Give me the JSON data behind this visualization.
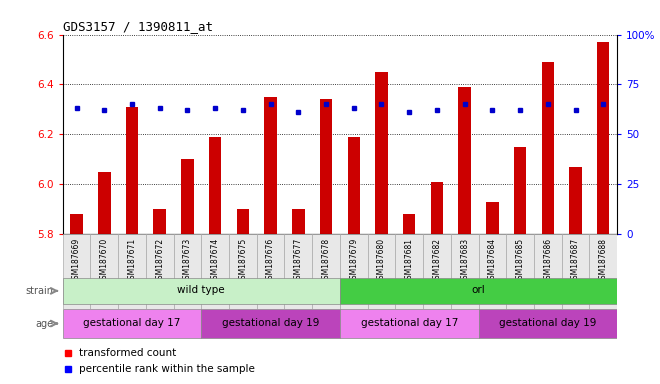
{
  "title": "GDS3157 / 1390811_at",
  "samples": [
    "GSM187669",
    "GSM187670",
    "GSM187671",
    "GSM187672",
    "GSM187673",
    "GSM187674",
    "GSM187675",
    "GSM187676",
    "GSM187677",
    "GSM187678",
    "GSM187679",
    "GSM187680",
    "GSM187681",
    "GSM187682",
    "GSM187683",
    "GSM187684",
    "GSM187685",
    "GSM187686",
    "GSM187687",
    "GSM187688"
  ],
  "bar_values": [
    5.88,
    6.05,
    6.31,
    5.9,
    6.1,
    6.19,
    5.9,
    6.35,
    5.9,
    6.34,
    6.19,
    6.45,
    5.88,
    6.01,
    6.39,
    5.93,
    6.15,
    6.49,
    6.07,
    6.57
  ],
  "percentile_values": [
    63,
    62,
    65,
    63,
    62,
    63,
    62,
    65,
    61,
    65,
    63,
    65,
    61,
    62,
    65,
    62,
    62,
    65,
    62,
    65
  ],
  "ylim_left": [
    5.8,
    6.6
  ],
  "ylim_right": [
    0,
    100
  ],
  "yticks_left": [
    5.8,
    6.0,
    6.2,
    6.4,
    6.6
  ],
  "yticks_right": [
    0,
    25,
    50,
    75,
    100
  ],
  "bar_color": "#cc0000",
  "dot_color": "#0000cc",
  "bar_base": 5.8,
  "strain_groups": [
    {
      "label": "wild type",
      "start": 0,
      "end": 9,
      "color": "#c8f0c8"
    },
    {
      "label": "orl",
      "start": 10,
      "end": 19,
      "color": "#44cc44"
    }
  ],
  "age_groups": [
    {
      "label": "gestational day 17",
      "start": 0,
      "end": 4,
      "color": "#ee82ee"
    },
    {
      "label": "gestational day 19",
      "start": 5,
      "end": 9,
      "color": "#cc44cc"
    },
    {
      "label": "gestational day 17",
      "start": 10,
      "end": 14,
      "color": "#ee82ee"
    },
    {
      "label": "gestational day 19",
      "start": 15,
      "end": 19,
      "color": "#cc44cc"
    }
  ]
}
